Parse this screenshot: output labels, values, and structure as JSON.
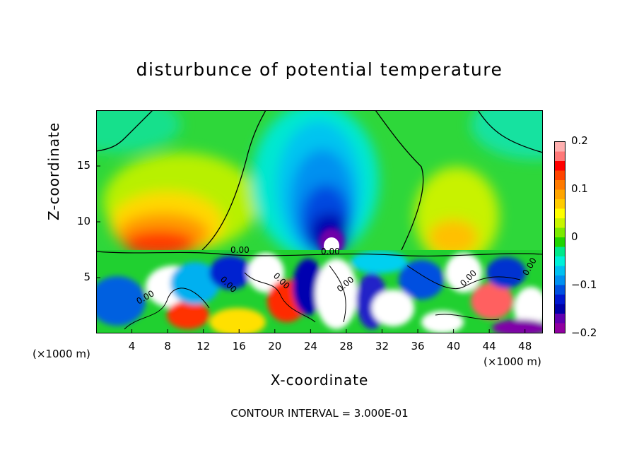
{
  "chart_data": {
    "type": "heatmap",
    "title": "disturbunce of potential temperature",
    "xlabel": "X-coordinate",
    "ylabel": "Z-coordinate",
    "x_unit": "(×1000 m)",
    "xlim": [
      0,
      50
    ],
    "ylim": [
      0,
      20
    ],
    "x_ticks": [
      4,
      8,
      12,
      16,
      20,
      24,
      28,
      32,
      36,
      40,
      44,
      48
    ],
    "y_ticks": [
      5,
      10,
      15
    ],
    "colorbar": {
      "range": [
        -0.2,
        0.2
      ],
      "tick_labels": [
        "0.2",
        "0.1",
        "0",
        "−0.1",
        "−0.2"
      ],
      "tick_values": [
        0.2,
        0.1,
        0,
        -0.1,
        -0.2
      ],
      "colors": [
        "#FFB0B0",
        "#FF7878",
        "#FF0000",
        "#FF4400",
        "#FF7A00",
        "#FFA500",
        "#FFCC00",
        "#FFFF00",
        "#C8F500",
        "#7CEA00",
        "#20D400",
        "#00E88A",
        "#00F0D8",
        "#00C0F0",
        "#0090F0",
        "#0050E0",
        "#0018D0",
        "#0000A8",
        "#6000B0",
        "#9000A0"
      ]
    },
    "contour_label": "0.00",
    "footer": "CONTOUR INTERVAL = 3.000E-01"
  }
}
